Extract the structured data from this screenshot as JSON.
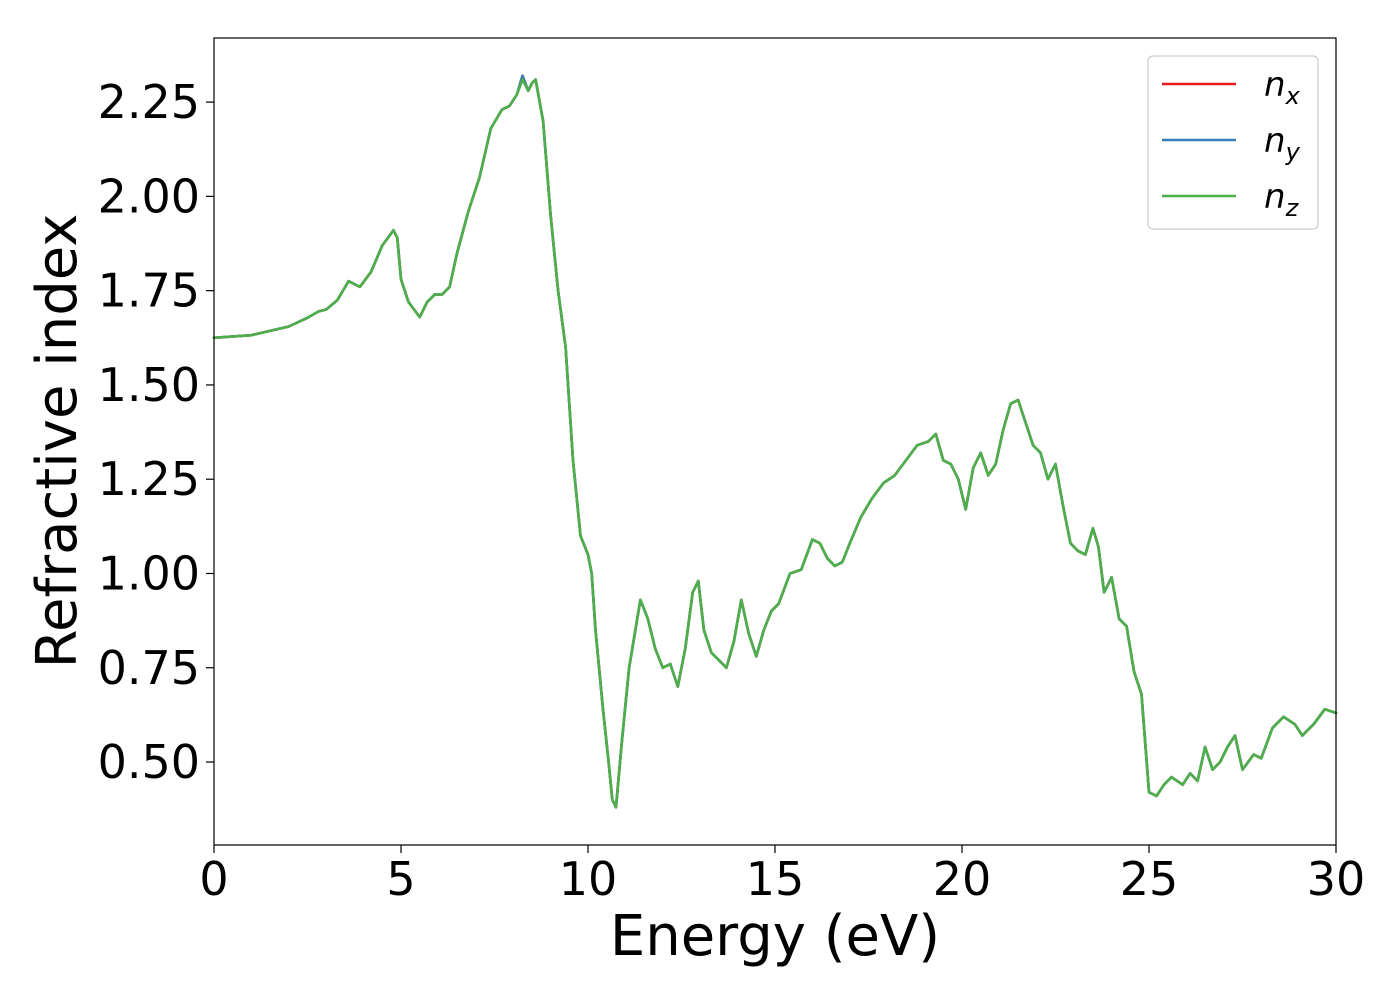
{
  "chart_data": {
    "type": "line",
    "xlabel": "Energy (eV)",
    "ylabel": "Refractive index",
    "xlim": [
      0,
      30
    ],
    "ylim": [
      0.28,
      2.42
    ],
    "xticks": [
      0,
      5,
      10,
      15,
      20,
      25,
      30
    ],
    "xtick_labels": [
      "0",
      "5",
      "10",
      "15",
      "20",
      "25",
      "30"
    ],
    "yticks": [
      0.5,
      0.75,
      1.0,
      1.25,
      1.5,
      1.75,
      2.0,
      2.25
    ],
    "ytick_labels": [
      "0.50",
      "0.75",
      "1.00",
      "1.25",
      "1.50",
      "1.75",
      "2.00",
      "2.25"
    ],
    "grid": false,
    "legend_position": "top-right",
    "x": [
      0,
      1,
      2,
      2.5,
      2.8,
      3.0,
      3.3,
      3.6,
      3.9,
      4.2,
      4.5,
      4.8,
      4.9,
      5.0,
      5.2,
      5.5,
      5.7,
      5.9,
      6.1,
      6.3,
      6.5,
      6.8,
      7.1,
      7.4,
      7.7,
      7.9,
      8.1,
      8.25,
      8.4,
      8.5,
      8.6,
      8.8,
      9.0,
      9.2,
      9.4,
      9.6,
      9.8,
      10.0,
      10.1,
      10.2,
      10.4,
      10.55,
      10.65,
      10.75,
      10.9,
      11.1,
      11.4,
      11.6,
      11.8,
      12.0,
      12.2,
      12.4,
      12.6,
      12.8,
      12.95,
      13.1,
      13.3,
      13.5,
      13.7,
      13.9,
      14.1,
      14.3,
      14.5,
      14.7,
      14.9,
      15.1,
      15.4,
      15.7,
      16.0,
      16.2,
      16.4,
      16.6,
      16.8,
      17.0,
      17.3,
      17.6,
      17.9,
      18.2,
      18.5,
      18.8,
      19.1,
      19.3,
      19.5,
      19.7,
      19.9,
      20.1,
      20.3,
      20.5,
      20.7,
      20.9,
      21.1,
      21.3,
      21.5,
      21.7,
      21.9,
      22.1,
      22.3,
      22.5,
      22.7,
      22.9,
      23.1,
      23.3,
      23.5,
      23.65,
      23.8,
      24.0,
      24.2,
      24.4,
      24.6,
      24.8,
      25.0,
      25.2,
      25.4,
      25.6,
      25.9,
      26.1,
      26.3,
      26.5,
      26.7,
      26.9,
      27.1,
      27.3,
      27.5,
      27.8,
      28.0,
      28.3,
      28.6,
      28.9,
      29.1,
      29.4,
      29.7,
      30.0
    ],
    "series": [
      {
        "name": "n_x",
        "label_main": "n",
        "label_sub": "x",
        "color": "#e41a1c",
        "values": [
          1.625,
          1.632,
          1.655,
          1.678,
          1.695,
          1.7,
          1.725,
          1.775,
          1.76,
          1.8,
          1.87,
          1.91,
          1.89,
          1.78,
          1.72,
          1.68,
          1.72,
          1.74,
          1.74,
          1.76,
          1.85,
          1.96,
          2.05,
          2.18,
          2.23,
          2.24,
          2.27,
          2.32,
          2.28,
          2.3,
          2.31,
          2.2,
          1.95,
          1.75,
          1.6,
          1.3,
          1.1,
          1.05,
          1.0,
          0.85,
          0.64,
          0.5,
          0.4,
          0.38,
          0.55,
          0.75,
          0.93,
          0.88,
          0.8,
          0.75,
          0.76,
          0.7,
          0.8,
          0.95,
          0.98,
          0.85,
          0.79,
          0.77,
          0.75,
          0.82,
          0.93,
          0.84,
          0.78,
          0.85,
          0.9,
          0.92,
          1.0,
          1.01,
          1.09,
          1.08,
          1.04,
          1.02,
          1.03,
          1.08,
          1.15,
          1.2,
          1.24,
          1.26,
          1.3,
          1.34,
          1.35,
          1.37,
          1.3,
          1.29,
          1.25,
          1.17,
          1.28,
          1.32,
          1.26,
          1.29,
          1.38,
          1.45,
          1.46,
          1.4,
          1.34,
          1.32,
          1.25,
          1.29,
          1.18,
          1.08,
          1.06,
          1.05,
          1.12,
          1.07,
          0.95,
          0.99,
          0.88,
          0.86,
          0.74,
          0.68,
          0.42,
          0.41,
          0.44,
          0.46,
          0.44,
          0.47,
          0.45,
          0.54,
          0.48,
          0.5,
          0.54,
          0.57,
          0.48,
          0.52,
          0.51,
          0.59,
          0.62,
          0.6,
          0.57,
          0.6,
          0.64,
          0.63
        ]
      },
      {
        "name": "n_y",
        "label_main": "n",
        "label_sub": "y",
        "color": "#377eb8",
        "values": [
          1.625,
          1.632,
          1.655,
          1.678,
          1.695,
          1.7,
          1.725,
          1.775,
          1.76,
          1.8,
          1.87,
          1.91,
          1.89,
          1.78,
          1.72,
          1.68,
          1.72,
          1.74,
          1.74,
          1.76,
          1.85,
          1.96,
          2.05,
          2.18,
          2.23,
          2.24,
          2.27,
          2.32,
          2.28,
          2.3,
          2.31,
          2.2,
          1.95,
          1.75,
          1.6,
          1.3,
          1.1,
          1.05,
          1.0,
          0.85,
          0.64,
          0.5,
          0.4,
          0.38,
          0.55,
          0.75,
          0.93,
          0.88,
          0.8,
          0.75,
          0.76,
          0.7,
          0.8,
          0.95,
          0.98,
          0.85,
          0.79,
          0.77,
          0.75,
          0.82,
          0.93,
          0.84,
          0.78,
          0.85,
          0.9,
          0.92,
          1.0,
          1.01,
          1.09,
          1.08,
          1.04,
          1.02,
          1.03,
          1.08,
          1.15,
          1.2,
          1.24,
          1.26,
          1.3,
          1.34,
          1.35,
          1.37,
          1.3,
          1.29,
          1.25,
          1.17,
          1.28,
          1.32,
          1.26,
          1.29,
          1.38,
          1.45,
          1.46,
          1.4,
          1.34,
          1.32,
          1.25,
          1.29,
          1.18,
          1.08,
          1.06,
          1.05,
          1.12,
          1.07,
          0.95,
          0.99,
          0.88,
          0.86,
          0.74,
          0.68,
          0.42,
          0.41,
          0.44,
          0.46,
          0.44,
          0.47,
          0.45,
          0.54,
          0.48,
          0.5,
          0.54,
          0.57,
          0.48,
          0.52,
          0.51,
          0.59,
          0.62,
          0.6,
          0.57,
          0.6,
          0.64,
          0.63
        ]
      },
      {
        "name": "n_z",
        "label_main": "n",
        "label_sub": "z",
        "color": "#4daf4a",
        "values": [
          1.625,
          1.632,
          1.655,
          1.678,
          1.695,
          1.7,
          1.725,
          1.775,
          1.76,
          1.8,
          1.87,
          1.91,
          1.89,
          1.78,
          1.72,
          1.68,
          1.72,
          1.74,
          1.74,
          1.76,
          1.85,
          1.96,
          2.05,
          2.18,
          2.23,
          2.24,
          2.27,
          2.31,
          2.28,
          2.3,
          2.31,
          2.2,
          1.95,
          1.75,
          1.6,
          1.3,
          1.1,
          1.05,
          1.0,
          0.85,
          0.64,
          0.5,
          0.4,
          0.38,
          0.55,
          0.75,
          0.93,
          0.88,
          0.8,
          0.75,
          0.76,
          0.7,
          0.8,
          0.95,
          0.98,
          0.85,
          0.79,
          0.77,
          0.75,
          0.82,
          0.93,
          0.84,
          0.78,
          0.85,
          0.9,
          0.92,
          1.0,
          1.01,
          1.09,
          1.08,
          1.04,
          1.02,
          1.03,
          1.08,
          1.15,
          1.2,
          1.24,
          1.26,
          1.3,
          1.34,
          1.35,
          1.37,
          1.3,
          1.29,
          1.25,
          1.17,
          1.28,
          1.32,
          1.26,
          1.29,
          1.38,
          1.45,
          1.46,
          1.4,
          1.34,
          1.32,
          1.25,
          1.29,
          1.18,
          1.08,
          1.06,
          1.05,
          1.12,
          1.07,
          0.95,
          0.99,
          0.88,
          0.86,
          0.74,
          0.68,
          0.42,
          0.41,
          0.44,
          0.46,
          0.44,
          0.47,
          0.45,
          0.54,
          0.48,
          0.5,
          0.54,
          0.57,
          0.48,
          0.52,
          0.51,
          0.59,
          0.62,
          0.6,
          0.57,
          0.6,
          0.64,
          0.63
        ]
      }
    ]
  }
}
